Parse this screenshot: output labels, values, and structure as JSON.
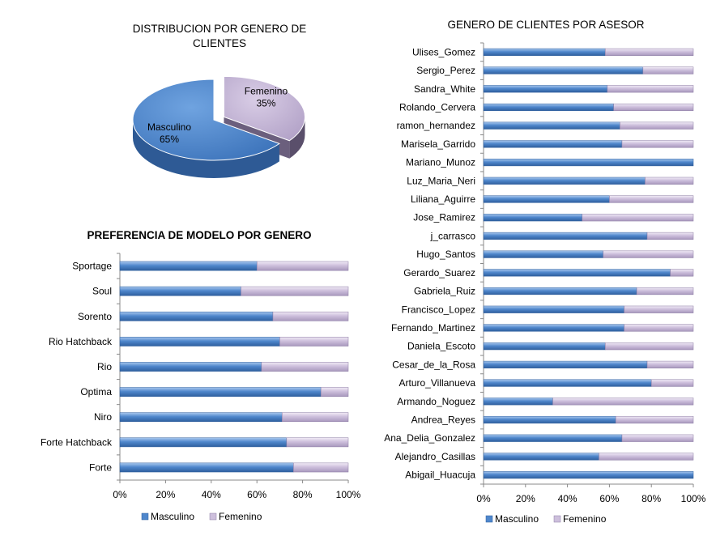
{
  "colors": {
    "masculino": "#4f87cc",
    "masculino_dark": "#2f5f9e",
    "femenino": "#cdbfdc",
    "femenino_dark": "#8a7aa3",
    "grid_axis": "#888888"
  },
  "chart_data": [
    {
      "id": "pie",
      "type": "pie",
      "title_lines": [
        "DISTRIBUCION POR GENERO DE",
        "CLIENTES"
      ],
      "slices": [
        {
          "label": "Masculino",
          "percent_label": "65%",
          "value": 65
        },
        {
          "label": "Femenino",
          "percent_label": "35%",
          "value": 35
        }
      ]
    },
    {
      "id": "model",
      "type": "bar",
      "stacked": "percent",
      "orientation": "horizontal",
      "title": "PREFERENCIA DE MODELO POR GENERO",
      "categories": [
        "Sportage",
        "Soul",
        "Sorento",
        "Rio Hatchback",
        "Rio",
        "Optima",
        "Niro",
        "Forte Hatchback",
        "Forte"
      ],
      "series": [
        {
          "name": "Masculino",
          "values": [
            60,
            53,
            67,
            70,
            62,
            88,
            71,
            73,
            76
          ]
        },
        {
          "name": "Femenino",
          "values": [
            40,
            47,
            33,
            30,
            38,
            12,
            29,
            27,
            24
          ]
        }
      ],
      "xticks": [
        "0%",
        "20%",
        "40%",
        "60%",
        "80%",
        "100%"
      ],
      "xlim": [
        0,
        100
      ],
      "legend": "bottom"
    },
    {
      "id": "advisor",
      "type": "bar",
      "stacked": "percent",
      "orientation": "horizontal",
      "title": "GENERO DE CLIENTES POR ASESOR",
      "categories": [
        "Ulises_Gomez",
        "Sergio_Perez",
        "Sandra_White",
        "Rolando_Cervera",
        "ramon_hernandez",
        "Marisela_Garrido",
        "Mariano_Munoz",
        "Luz_Maria_Neri",
        "Liliana_Aguirre",
        "Jose_Ramirez",
        "j_carrasco",
        "Hugo_Santos",
        "Gerardo_Suarez",
        "Gabriela_Ruiz",
        "Francisco_Lopez",
        "Fernando_Martinez",
        "Daniela_Escoto",
        "Cesar_de_la_Rosa",
        "Arturo_Villanueva",
        "Armando_Noguez",
        "Andrea_Reyes",
        "Ana_Delia_Gonzalez",
        "Alejandro_Casillas",
        "Abigail_Huacuja"
      ],
      "series": [
        {
          "name": "Masculino",
          "values": [
            58,
            76,
            59,
            62,
            65,
            66,
            100,
            77,
            60,
            47,
            78,
            57,
            89,
            73,
            67,
            67,
            58,
            78,
            80,
            33,
            63,
            66,
            55,
            100
          ]
        },
        {
          "name": "Femenino",
          "values": [
            42,
            24,
            41,
            38,
            35,
            34,
            0,
            23,
            40,
            53,
            22,
            43,
            11,
            27,
            33,
            33,
            42,
            22,
            20,
            67,
            37,
            34,
            45,
            0
          ]
        }
      ],
      "xticks": [
        "0%",
        "20%",
        "40%",
        "60%",
        "80%",
        "100%"
      ],
      "xlim": [
        0,
        100
      ],
      "legend": "bottom"
    }
  ]
}
